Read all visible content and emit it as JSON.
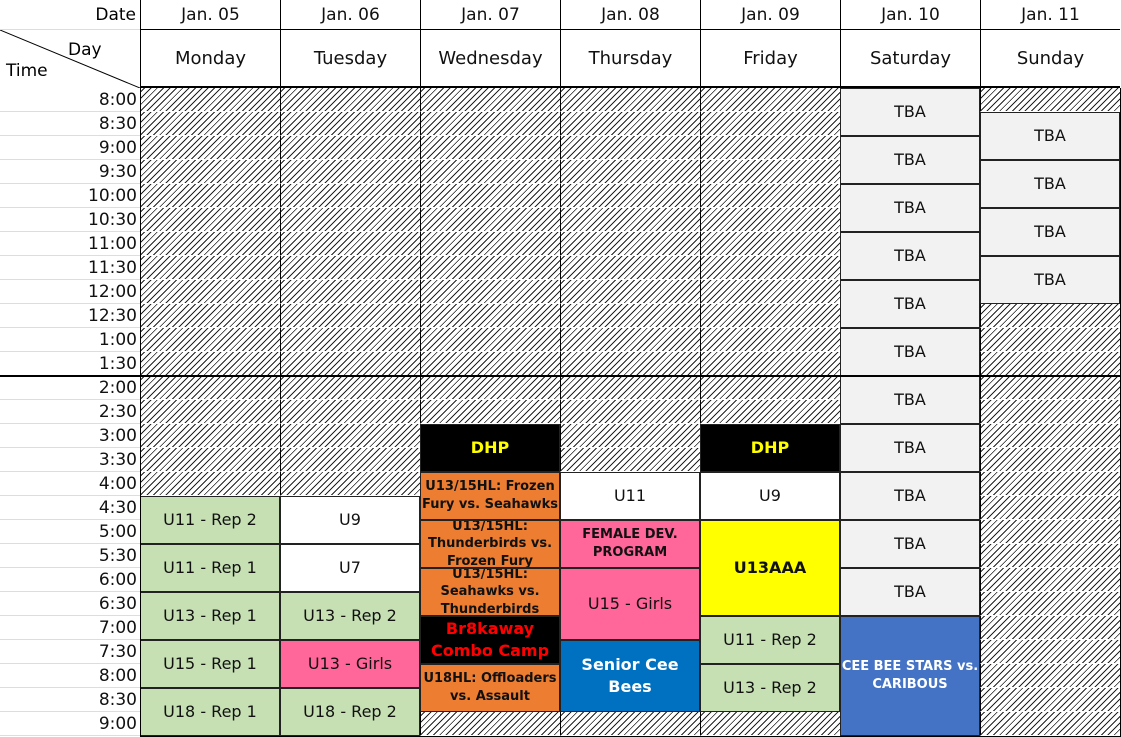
{
  "corner": {
    "date_label": "Date",
    "day_label": "Day",
    "time_label": "Time"
  },
  "times": [
    "8:00",
    "8:30",
    "9:00",
    "9:30",
    "10:00",
    "10:30",
    "11:00",
    "11:30",
    "12:00",
    "12:30",
    "1:00",
    "1:30",
    "2:00",
    "2:30",
    "3:00",
    "3:30",
    "4:00",
    "4:30",
    "5:00",
    "5:30",
    "6:00",
    "6:30",
    "7:00",
    "7:30",
    "8:00",
    "8:30",
    "9:00"
  ],
  "colors": {
    "green": "#c6e0b4",
    "pink": "#ff6699",
    "orange": "#ed7d31",
    "blue": "#0070c0",
    "steel": "#4472c4",
    "yellow": "#ffff00",
    "gray": "#f2f2f2",
    "white": "#ffffff",
    "black": "#000000"
  },
  "days": [
    {
      "date": "Jan. 05",
      "name": "Monday",
      "events": [
        {
          "label": "U11 - Rep 2",
          "start": 17,
          "span": 2,
          "bg": "green"
        },
        {
          "label": "U11 - Rep 1",
          "start": 19,
          "span": 2,
          "bg": "green"
        },
        {
          "label": "U13 - Rep 1",
          "start": 21,
          "span": 2,
          "bg": "green"
        },
        {
          "label": "U15 - Rep 1",
          "start": 23,
          "span": 2,
          "bg": "green"
        },
        {
          "label": "U18 - Rep 1",
          "start": 25,
          "span": 2,
          "bg": "green"
        }
      ]
    },
    {
      "date": "Jan. 06",
      "name": "Tuesday",
      "events": [
        {
          "label": "U9",
          "start": 17,
          "span": 2,
          "bg": "white"
        },
        {
          "label": "U7",
          "start": 19,
          "span": 2,
          "bg": "white"
        },
        {
          "label": "U13 - Rep 2",
          "start": 21,
          "span": 2,
          "bg": "green"
        },
        {
          "label": "U13 - Girls",
          "start": 23,
          "span": 2,
          "bg": "pink"
        },
        {
          "label": "U18 - Rep 2",
          "start": 25,
          "span": 2,
          "bg": "green"
        }
      ]
    },
    {
      "date": "Jan. 07",
      "name": "Wednesday",
      "events": [
        {
          "label": "DHP",
          "start": 14,
          "span": 2,
          "bg": "black",
          "color": "#ffff00",
          "style": "big"
        },
        {
          "label": "U13/15HL: Frozen Fury vs. Seahawks",
          "start": 16,
          "span": 2,
          "bg": "orange",
          "style": "bold"
        },
        {
          "label": "U13/15HL: Thunderbirds vs. Frozen Fury",
          "start": 18,
          "span": 2,
          "bg": "orange",
          "style": "bold"
        },
        {
          "label": "U13/15HL: Seahawks vs. Thunderbirds",
          "start": 20,
          "span": 2,
          "bg": "orange",
          "style": "bold"
        },
        {
          "label": "Br8kaway Combo Camp",
          "start": 22,
          "span": 2,
          "bg": "black",
          "color": "#ff0000",
          "style": "big"
        },
        {
          "label": "U18HL: Offloaders vs. Assault",
          "start": 24,
          "span": 2,
          "bg": "orange",
          "style": "bold"
        }
      ]
    },
    {
      "date": "Jan. 08",
      "name": "Thursday",
      "events": [
        {
          "label": "U11",
          "start": 16,
          "span": 2,
          "bg": "white"
        },
        {
          "label": "FEMALE DEV. PROGRAM",
          "start": 18,
          "span": 2,
          "bg": "pink",
          "style": "bold"
        },
        {
          "label": "U15 - Girls",
          "start": 20,
          "span": 3,
          "bg": "pink"
        },
        {
          "label": "Senior Cee Bees",
          "start": 23,
          "span": 3,
          "bg": "blue",
          "color": "#ffffff",
          "style": "big"
        }
      ]
    },
    {
      "date": "Jan. 09",
      "name": "Friday",
      "events": [
        {
          "label": "DHP",
          "start": 14,
          "span": 2,
          "bg": "black",
          "color": "#ffff00",
          "style": "big"
        },
        {
          "label": "U9",
          "start": 16,
          "span": 2,
          "bg": "white"
        },
        {
          "label": "U13AAA",
          "start": 18,
          "span": 4,
          "bg": "yellow",
          "style": "big"
        },
        {
          "label": "U11 - Rep 2",
          "start": 22,
          "span": 2,
          "bg": "green"
        },
        {
          "label": "U13 - Rep 2",
          "start": 24,
          "span": 2,
          "bg": "green"
        }
      ]
    },
    {
      "date": "Jan. 10",
      "name": "Saturday",
      "events": [
        {
          "label": "TBA",
          "start": 0,
          "span": 2,
          "bg": "gray"
        },
        {
          "label": "TBA",
          "start": 2,
          "span": 2,
          "bg": "gray"
        },
        {
          "label": "TBA",
          "start": 4,
          "span": 2,
          "bg": "gray"
        },
        {
          "label": "TBA",
          "start": 6,
          "span": 2,
          "bg": "gray"
        },
        {
          "label": "TBA",
          "start": 8,
          "span": 2,
          "bg": "gray"
        },
        {
          "label": "TBA",
          "start": 10,
          "span": 2,
          "bg": "gray"
        },
        {
          "label": "TBA",
          "start": 12,
          "span": 2,
          "bg": "gray"
        },
        {
          "label": "TBA",
          "start": 14,
          "span": 2,
          "bg": "gray"
        },
        {
          "label": "TBA",
          "start": 16,
          "span": 2,
          "bg": "gray"
        },
        {
          "label": "TBA",
          "start": 18,
          "span": 2,
          "bg": "gray"
        },
        {
          "label": "TBA",
          "start": 20,
          "span": 2,
          "bg": "gray"
        },
        {
          "label": "CEE BEE STARS vs. CARIBOUS",
          "start": 22,
          "span": 5,
          "bg": "steel",
          "color": "#ffffff",
          "style": "bold"
        }
      ]
    },
    {
      "date": "Jan. 11",
      "name": "Sunday",
      "events": [
        {
          "label": "TBA",
          "start": 1,
          "span": 2,
          "bg": "gray"
        },
        {
          "label": "TBA",
          "start": 3,
          "span": 2,
          "bg": "gray"
        },
        {
          "label": "TBA",
          "start": 5,
          "span": 2,
          "bg": "gray"
        },
        {
          "label": "TBA",
          "start": 7,
          "span": 2,
          "bg": "gray"
        }
      ]
    }
  ]
}
